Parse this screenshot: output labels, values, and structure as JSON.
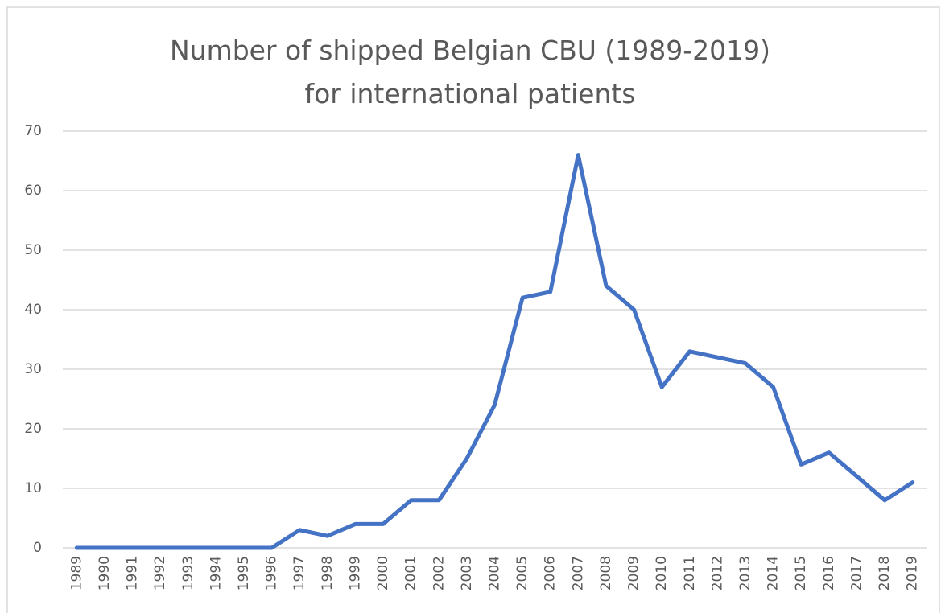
{
  "chart_data": {
    "type": "line",
    "title": "Number of shipped Belgian CBU (1989-2019) for international patients",
    "categories": [
      "1989",
      "1990",
      "1991",
      "1992",
      "1993",
      "1994",
      "1995",
      "1996",
      "1997",
      "1998",
      "1999",
      "2000",
      "2001",
      "2002",
      "2003",
      "2004",
      "2005",
      "2006",
      "2007",
      "2008",
      "2009",
      "2010",
      "2011",
      "2012",
      "2013",
      "2014",
      "2015",
      "2016",
      "2017",
      "2018",
      "2019"
    ],
    "values": [
      0,
      0,
      0,
      0,
      0,
      0,
      0,
      0,
      3,
      2,
      4,
      4,
      8,
      8,
      15,
      24,
      42,
      43,
      66,
      44,
      40,
      27,
      33,
      32,
      31,
      27,
      14,
      16,
      12,
      8,
      11
    ],
    "color": "#4472c4",
    "ylim": [
      0,
      70
    ],
    "yticks": [
      0,
      10,
      20,
      30,
      40,
      50,
      60,
      70
    ],
    "grid": true
  }
}
